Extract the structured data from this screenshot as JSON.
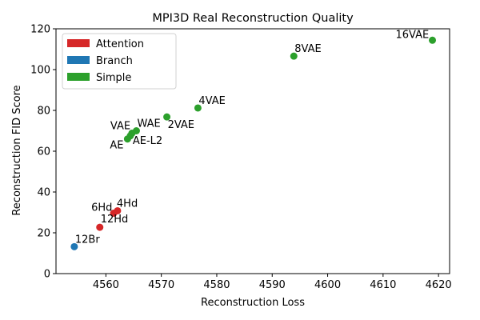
{
  "chart_data": {
    "type": "scatter",
    "title": "MPI3D Real Reconstruction Quality",
    "xlabel": "Reconstruction Loss",
    "ylabel": "Reconstruction FID Score",
    "xlim": [
      4551,
      4622
    ],
    "ylim": [
      0,
      120
    ],
    "xticks": [
      4560,
      4570,
      4580,
      4590,
      4600,
      4610,
      4620
    ],
    "yticks": [
      0,
      20,
      40,
      60,
      80,
      100,
      120
    ],
    "grid": false,
    "legend_position": "top-left",
    "legend": [
      {
        "name": "Attention",
        "color": "#d62728"
      },
      {
        "name": "Branch",
        "color": "#1f77b4"
      },
      {
        "name": "Simple",
        "color": "#2ca02c"
      }
    ],
    "points": [
      {
        "label": "12Br",
        "x": 4554.3,
        "y": 13.2,
        "group": "Branch"
      },
      {
        "label": "12Hd",
        "x": 4558.9,
        "y": 22.7,
        "group": "Attention"
      },
      {
        "label": "6Hd",
        "x": 4561.4,
        "y": 29.6,
        "group": "Attention"
      },
      {
        "label": "4Hd",
        "x": 4562.1,
        "y": 30.8,
        "group": "Attention"
      },
      {
        "label": "AE",
        "x": 4563.9,
        "y": 66.0,
        "group": "Simple"
      },
      {
        "label": "AE-L2",
        "x": 4564.4,
        "y": 67.5,
        "group": "Simple"
      },
      {
        "label": "VAE",
        "x": 4564.7,
        "y": 68.8,
        "group": "Simple"
      },
      {
        "label": "WAE",
        "x": 4565.5,
        "y": 70.0,
        "group": "Simple"
      },
      {
        "label": "2VAE",
        "x": 4571.0,
        "y": 76.8,
        "group": "Simple"
      },
      {
        "label": "4VAE",
        "x": 4576.6,
        "y": 81.2,
        "group": "Simple"
      },
      {
        "label": "8VAE",
        "x": 4593.9,
        "y": 106.6,
        "group": "Simple"
      },
      {
        "label": "16VAE",
        "x": 4618.9,
        "y": 114.4,
        "group": "Simple"
      }
    ]
  }
}
